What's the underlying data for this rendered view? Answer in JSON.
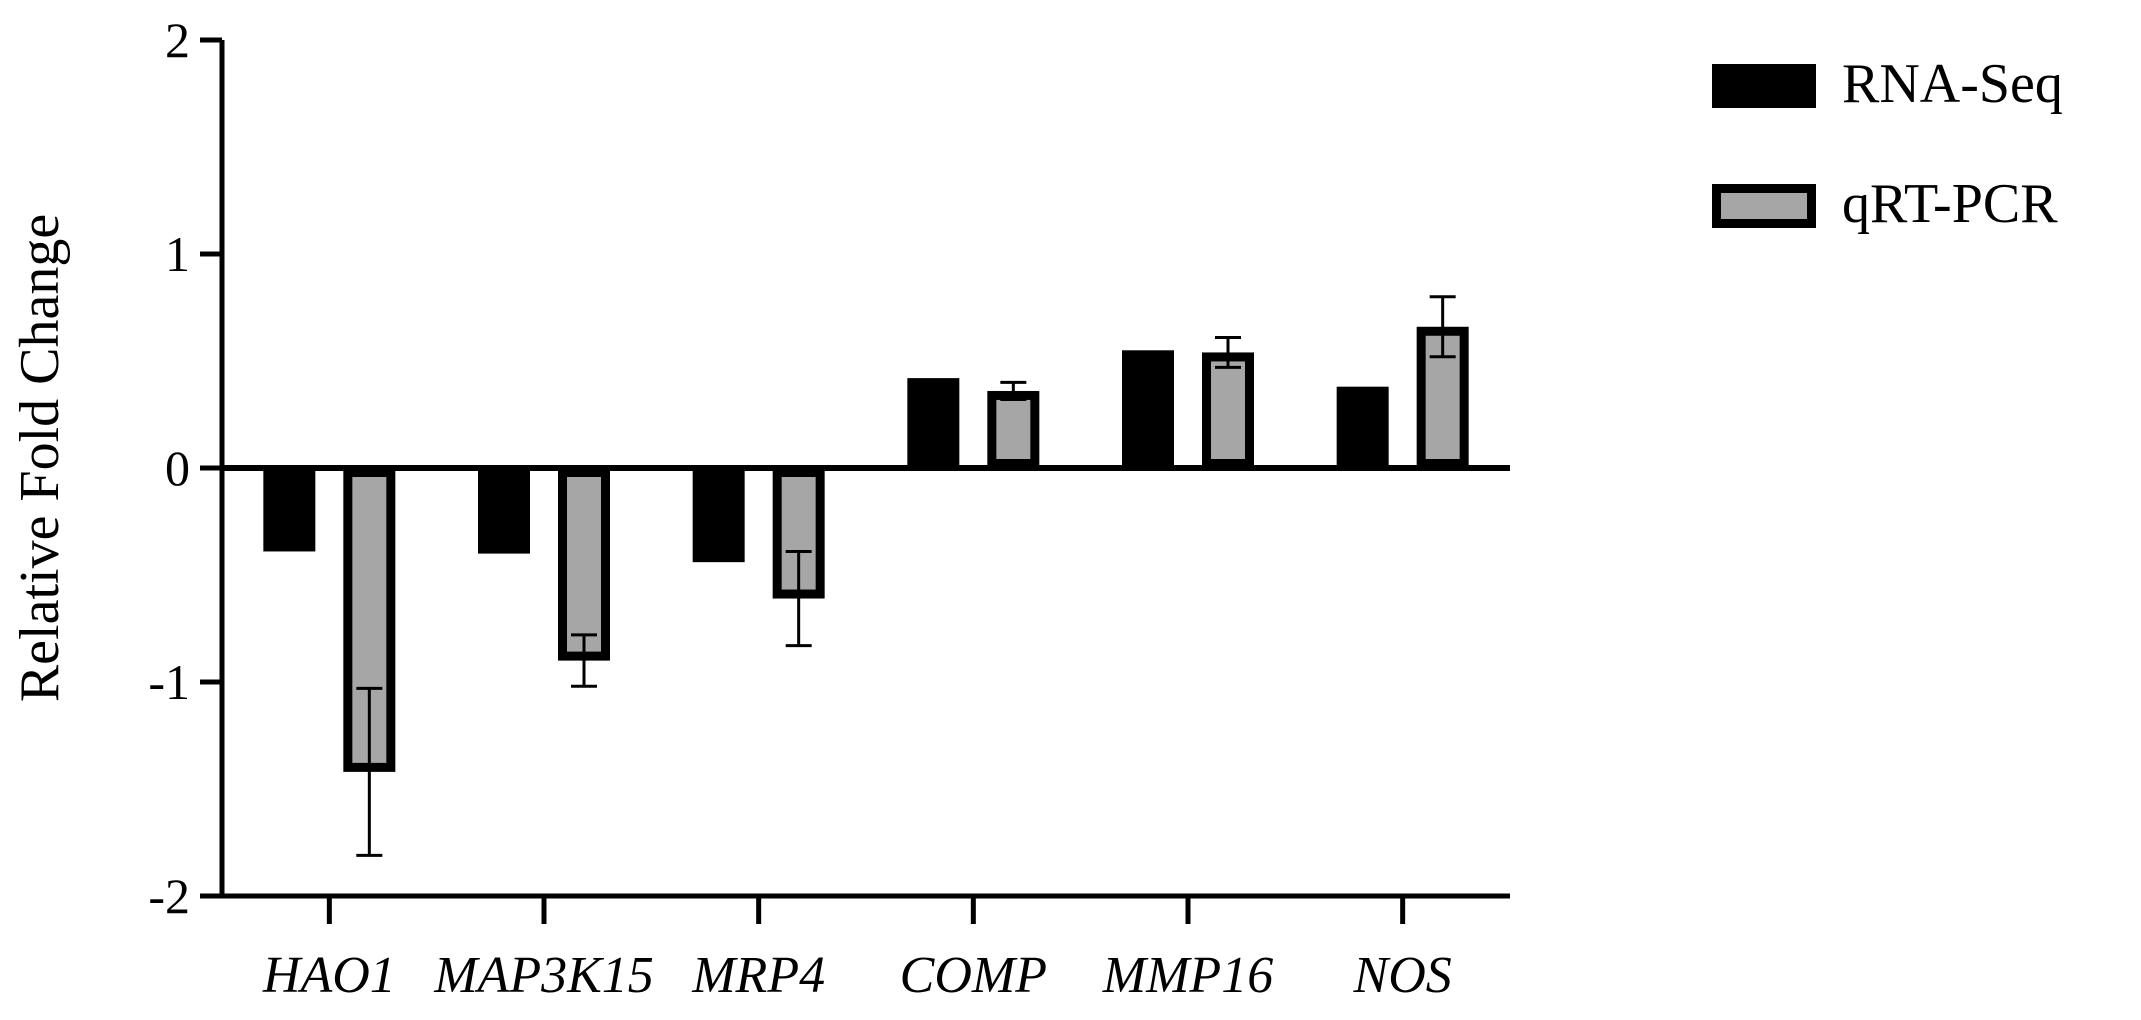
{
  "chart_data": {
    "type": "bar",
    "ylabel": "Relative Fold Change",
    "xlabel": "",
    "ylim": [
      -2,
      2
    ],
    "yticks": [
      -2,
      -1,
      0,
      1,
      2
    ],
    "ytick_labels": [
      "-2",
      "-1",
      "0",
      "1",
      "2"
    ],
    "categories": [
      "HAO1",
      "MAP3K15",
      "MRP4",
      "COMP",
      "MMP16",
      "NOS"
    ],
    "series": [
      {
        "name": "RNA-Seq",
        "color": "#000000",
        "values": [
          -0.39,
          -0.4,
          -0.44,
          0.42,
          0.55,
          0.38
        ],
        "errors": null
      },
      {
        "name": "qRT-PCR",
        "color": "#a6a6a6",
        "edge_color": "#000000",
        "values": [
          -1.42,
          -0.9,
          -0.61,
          0.36,
          0.54,
          0.66
        ],
        "errors": [
          0.39,
          0.12,
          0.22,
          0.04,
          0.07,
          0.14
        ]
      }
    ],
    "legend_position": "top-right",
    "grid": false
  }
}
